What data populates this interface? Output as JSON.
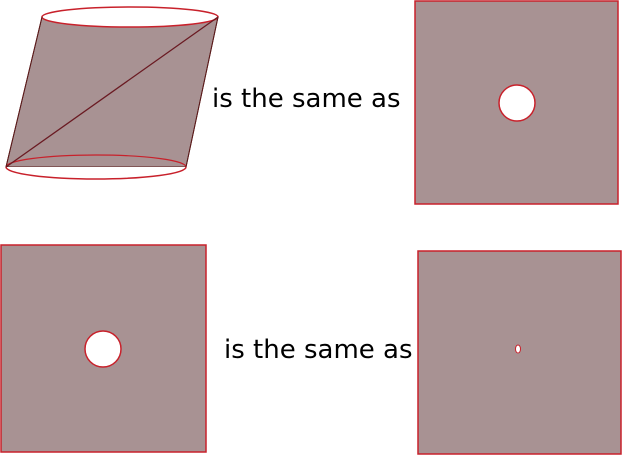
{
  "colors": {
    "fill": "#a89293",
    "outline": "#c8212b",
    "edge": "#5a1a1a",
    "hole": "#ffffff",
    "background": "#ffffff"
  },
  "rows": [
    {
      "left_shape": "cylinder-with-diagonal-seam",
      "connector_text": "is the same as",
      "right_shape": "square-with-circular-hole"
    },
    {
      "left_shape": "square-with-circular-hole",
      "connector_text": "is the same as",
      "right_shape": "square-with-tiny-hole"
    }
  ]
}
